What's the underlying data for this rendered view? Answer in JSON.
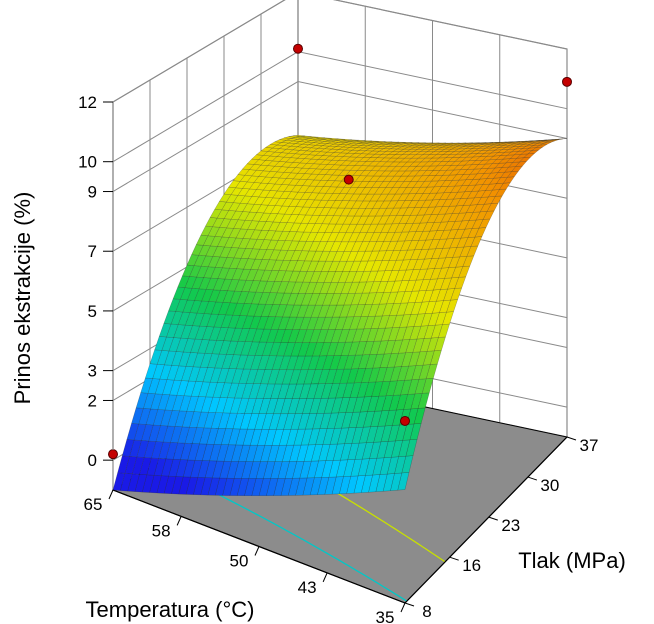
{
  "chart_data": {
    "type": "surface3d",
    "title": "",
    "zlabel": "Prinos ekstrakcije (%)",
    "xlabel": "Temperatura (°C)",
    "ylabel": "Tlak (MPa)",
    "z_ticks": [
      "0",
      "2",
      "3",
      "5",
      "7",
      "9",
      "10",
      "12"
    ],
    "x_ticks": [
      "65",
      "58",
      "50",
      "43",
      "35"
    ],
    "y_ticks": [
      "8",
      "16",
      "23",
      "30",
      "37"
    ],
    "x_range": [
      35,
      65
    ],
    "y_range": [
      8,
      37
    ],
    "z_range": [
      -1,
      12
    ],
    "grid": true,
    "colormap": [
      "#1a1ae6",
      "#00c8ff",
      "#12c94a",
      "#e6e600",
      "#f29300",
      "#cc0000"
    ],
    "observed_points": [
      {
        "temperature": 65,
        "pressure": 8,
        "yield": 0.2
      },
      {
        "temperature": 65,
        "pressure": 37,
        "yield": 10.1
      },
      {
        "temperature": 50,
        "pressure": 23,
        "yield": 8.9
      },
      {
        "temperature": 35,
        "pressure": 37,
        "yield": 10.9
      },
      {
        "temperature": 35,
        "pressure": 8,
        "yield": 5.1
      }
    ],
    "floor_contours": [
      {
        "level": "cyan",
        "color": "#00c8c8"
      },
      {
        "level": "yellow-green",
        "color": "#c8e000"
      },
      {
        "level": "yellow",
        "color": "#f0d000"
      }
    ]
  }
}
